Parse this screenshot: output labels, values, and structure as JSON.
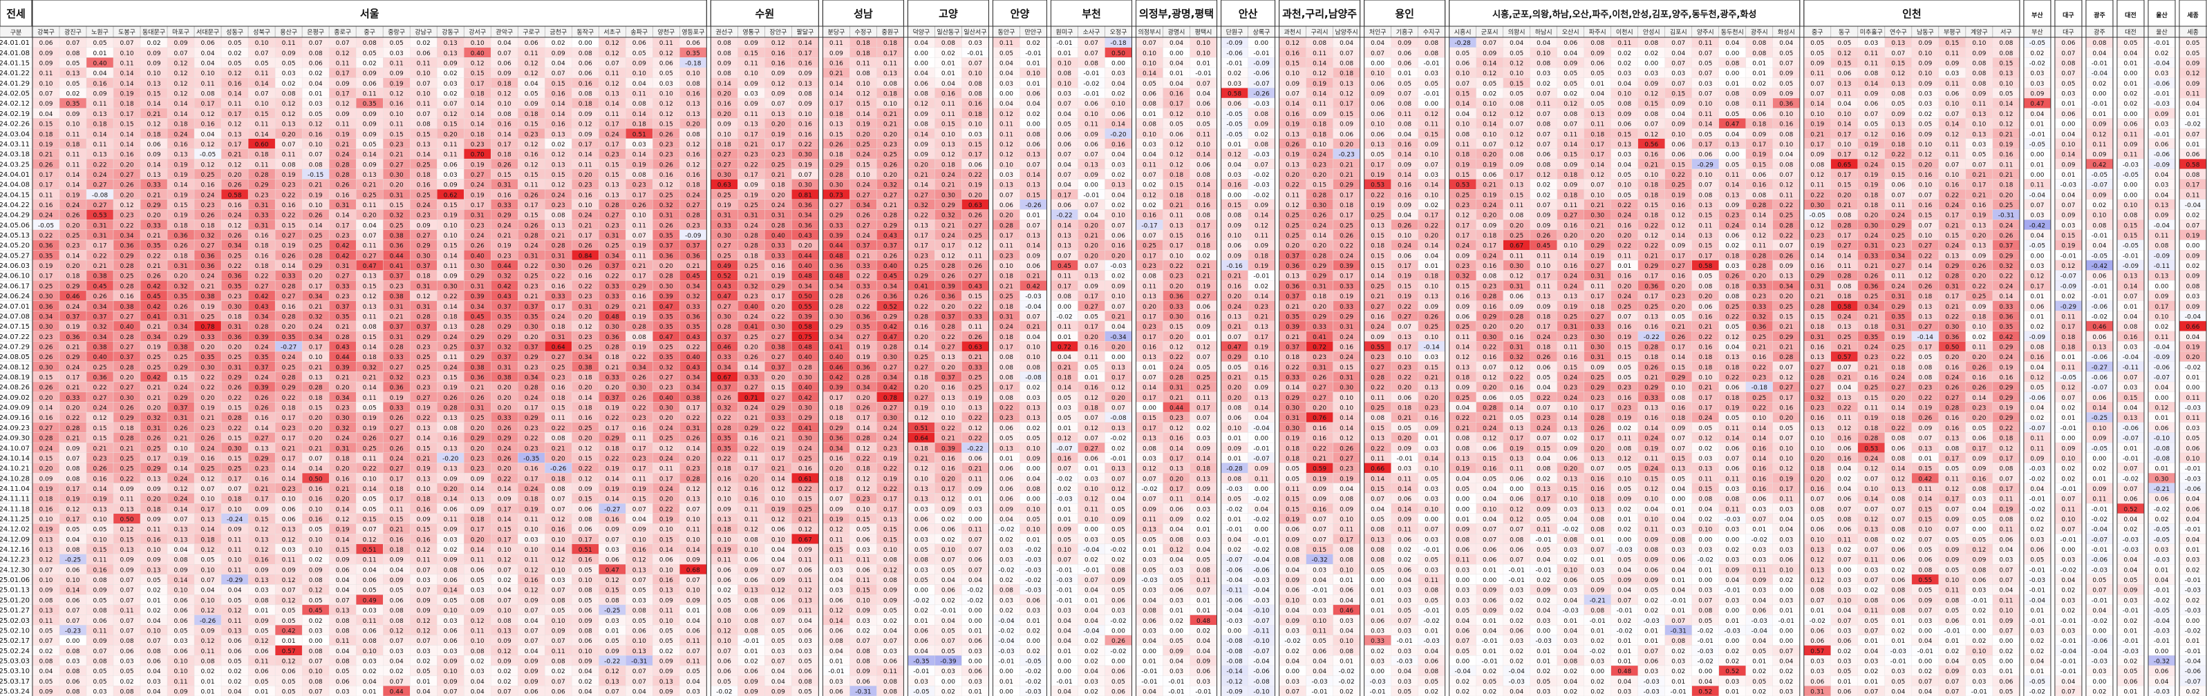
{
  "table": {
    "first_header": "전세",
    "subheader_label": "구분",
    "regions": [
      {
        "name": "서울",
        "districts": [
          "강북구",
          "광진구",
          "노원구",
          "도봉구",
          "동대문구",
          "마포구",
          "서대문구",
          "성동구",
          "성북구",
          "용산구",
          "은평구",
          "종로구",
          "중구",
          "중랑구",
          "강남구",
          "강동구",
          "강서구",
          "관악구",
          "구로구",
          "금천구",
          "동작구",
          "서초구",
          "송파구",
          "양천구",
          "영등포구"
        ]
      },
      {
        "name": "수원",
        "districts": [
          "권선구",
          "영통구",
          "장안구",
          "팔달구"
        ]
      },
      {
        "name": "성남",
        "districts": [
          "분당구",
          "수정구",
          "중원구"
        ]
      },
      {
        "name": "고양",
        "districts": [
          "덕양구",
          "일산동구",
          "일산서구"
        ]
      },
      {
        "name": "안양",
        "districts": [
          "동안구",
          "만안구"
        ]
      },
      {
        "name": "부천",
        "districts": [
          "원미구",
          "소사구",
          "오정구"
        ]
      },
      {
        "name": "의정부,광명,평택",
        "districts": [
          "의정부시",
          "광명시",
          "평택시"
        ]
      },
      {
        "name": "안산",
        "districts": [
          "단원구",
          "상록구"
        ]
      },
      {
        "name": "과천,구리,남양주",
        "districts": [
          "과천시",
          "구리시",
          "남양주시"
        ]
      },
      {
        "name": "용인",
        "districts": [
          "처인구",
          "기흥구",
          "수지구"
        ]
      },
      {
        "name": "시흥,군포,의왕,하남,오산,파주,이천,안성,김포,양주,동두천,광주,화성",
        "districts": [
          "시흥시",
          "군포시",
          "의왕시",
          "하남시",
          "오산시",
          "파주시",
          "이천시",
          "안성시",
          "김포시",
          "양주시",
          "동두천시",
          "광주시",
          "화성시"
        ]
      },
      {
        "name": "인천",
        "districts": [
          "중구",
          "동구",
          "미추홀구",
          "연수구",
          "남동구",
          "부평구",
          "계양구",
          "서구"
        ]
      },
      {
        "name": "부산",
        "districts": [
          "부산"
        ]
      },
      {
        "name": "대구",
        "districts": [
          "대구"
        ]
      },
      {
        "name": "광주",
        "districts": [
          "광주"
        ]
      },
      {
        "name": "대전",
        "districts": [
          "대전"
        ]
      },
      {
        "name": "울산",
        "districts": [
          "울산"
        ]
      },
      {
        "name": "세종",
        "districts": [
          "세종"
        ]
      }
    ],
    "dates": [
      "24.01.01",
      "24.01.08",
      "24.01.15",
      "24.01.22",
      "24.01.29",
      "24.02.05",
      "24.02.12",
      "24.02.19",
      "24.02.26",
      "24.03.04",
      "24.03.11",
      "24.03.18",
      "24.03.25",
      "24.04.01",
      "24.04.08",
      "24.04.15",
      "24.04.22",
      "24.04.29",
      "24.05.06",
      "24.05.13",
      "24.05.20",
      "24.05.27",
      "24.06.03",
      "24.06.10",
      "24.06.17",
      "24.06.24",
      "24.07.01",
      "24.07.08",
      "24.07.15",
      "24.07.22",
      "24.07.29",
      "24.08.05",
      "24.08.12",
      "24.08.19",
      "24.08.26",
      "24.09.02",
      "24.09.09",
      "24.09.16",
      "24.09.23",
      "24.09.30",
      "24.10.07",
      "24.10.14",
      "24.10.21",
      "24.10.28",
      "24.11.04",
      "24.11.11",
      "24.11.18",
      "24.11.25",
      "24.12.02",
      "24.12.09",
      "24.12.16",
      "24.12.23",
      "24.12.30",
      "25.01.06",
      "25.01.13",
      "25.01.20",
      "25.01.27",
      "25.02.03",
      "25.02.10",
      "25.02.17",
      "25.02.24",
      "25.03.03",
      "25.03.10",
      "25.03.17",
      "25.03.24"
    ]
  },
  "chart_data": {
    "type": "heatmap",
    "title": "전세",
    "value_format": "two-decimal weekly change",
    "color_scale": {
      "negative": "#7f86e8",
      "zero": "#ffffff",
      "positive": "#e8262a",
      "max_abs": 0.6
    },
    "regional_trend_profiles": {
      "서울": {
        "start": 0.05,
        "peak": 0.28,
        "end": 0.06
      },
      "수원": {
        "start": 0.06,
        "peak": 0.35,
        "end": 0.04
      },
      "성남": {
        "start": 0.09,
        "peak": 0.33,
        "end": 0.05
      },
      "고양": {
        "start": 0.04,
        "peak": 0.24,
        "end": 0.01
      },
      "안양": {
        "start": 0.02,
        "peak": 0.18,
        "end": 0.0
      },
      "부천": {
        "start": 0.03,
        "peak": 0.15,
        "end": 0.02
      },
      "의정부,광명,평택": {
        "start": 0.05,
        "peak": 0.2,
        "end": 0.02
      },
      "안산": {
        "start": -0.05,
        "peak": 0.12,
        "end": -0.08
      },
      "과천,구리,남양주": {
        "start": 0.08,
        "peak": 0.32,
        "end": 0.03
      },
      "용인": {
        "start": 0.03,
        "peak": 0.18,
        "end": 0.02
      },
      "시흥,군포,의왕,하남,오산,파주,이천,안성,김포,양주,동두천,광주,화성": {
        "start": 0.04,
        "peak": 0.22,
        "end": 0.01
      },
      "인천": {
        "start": 0.06,
        "peak": 0.25,
        "end": 0.03
      },
      "부산": {
        "start": 0.01,
        "peak": 0.03,
        "end": 0.01
      },
      "대구": {
        "start": 0.02,
        "peak": 0.05,
        "end": 0.01
      },
      "광주": {
        "start": 0.01,
        "peak": 0.04,
        "end": 0.0
      },
      "대전": {
        "start": 0.02,
        "peak": 0.04,
        "end": 0.01
      },
      "울산": {
        "start": 0.01,
        "peak": 0.03,
        "end": 0.0
      },
      "세종": {
        "start": 0.05,
        "peak": 0.12,
        "end": -0.02
      }
    }
  }
}
